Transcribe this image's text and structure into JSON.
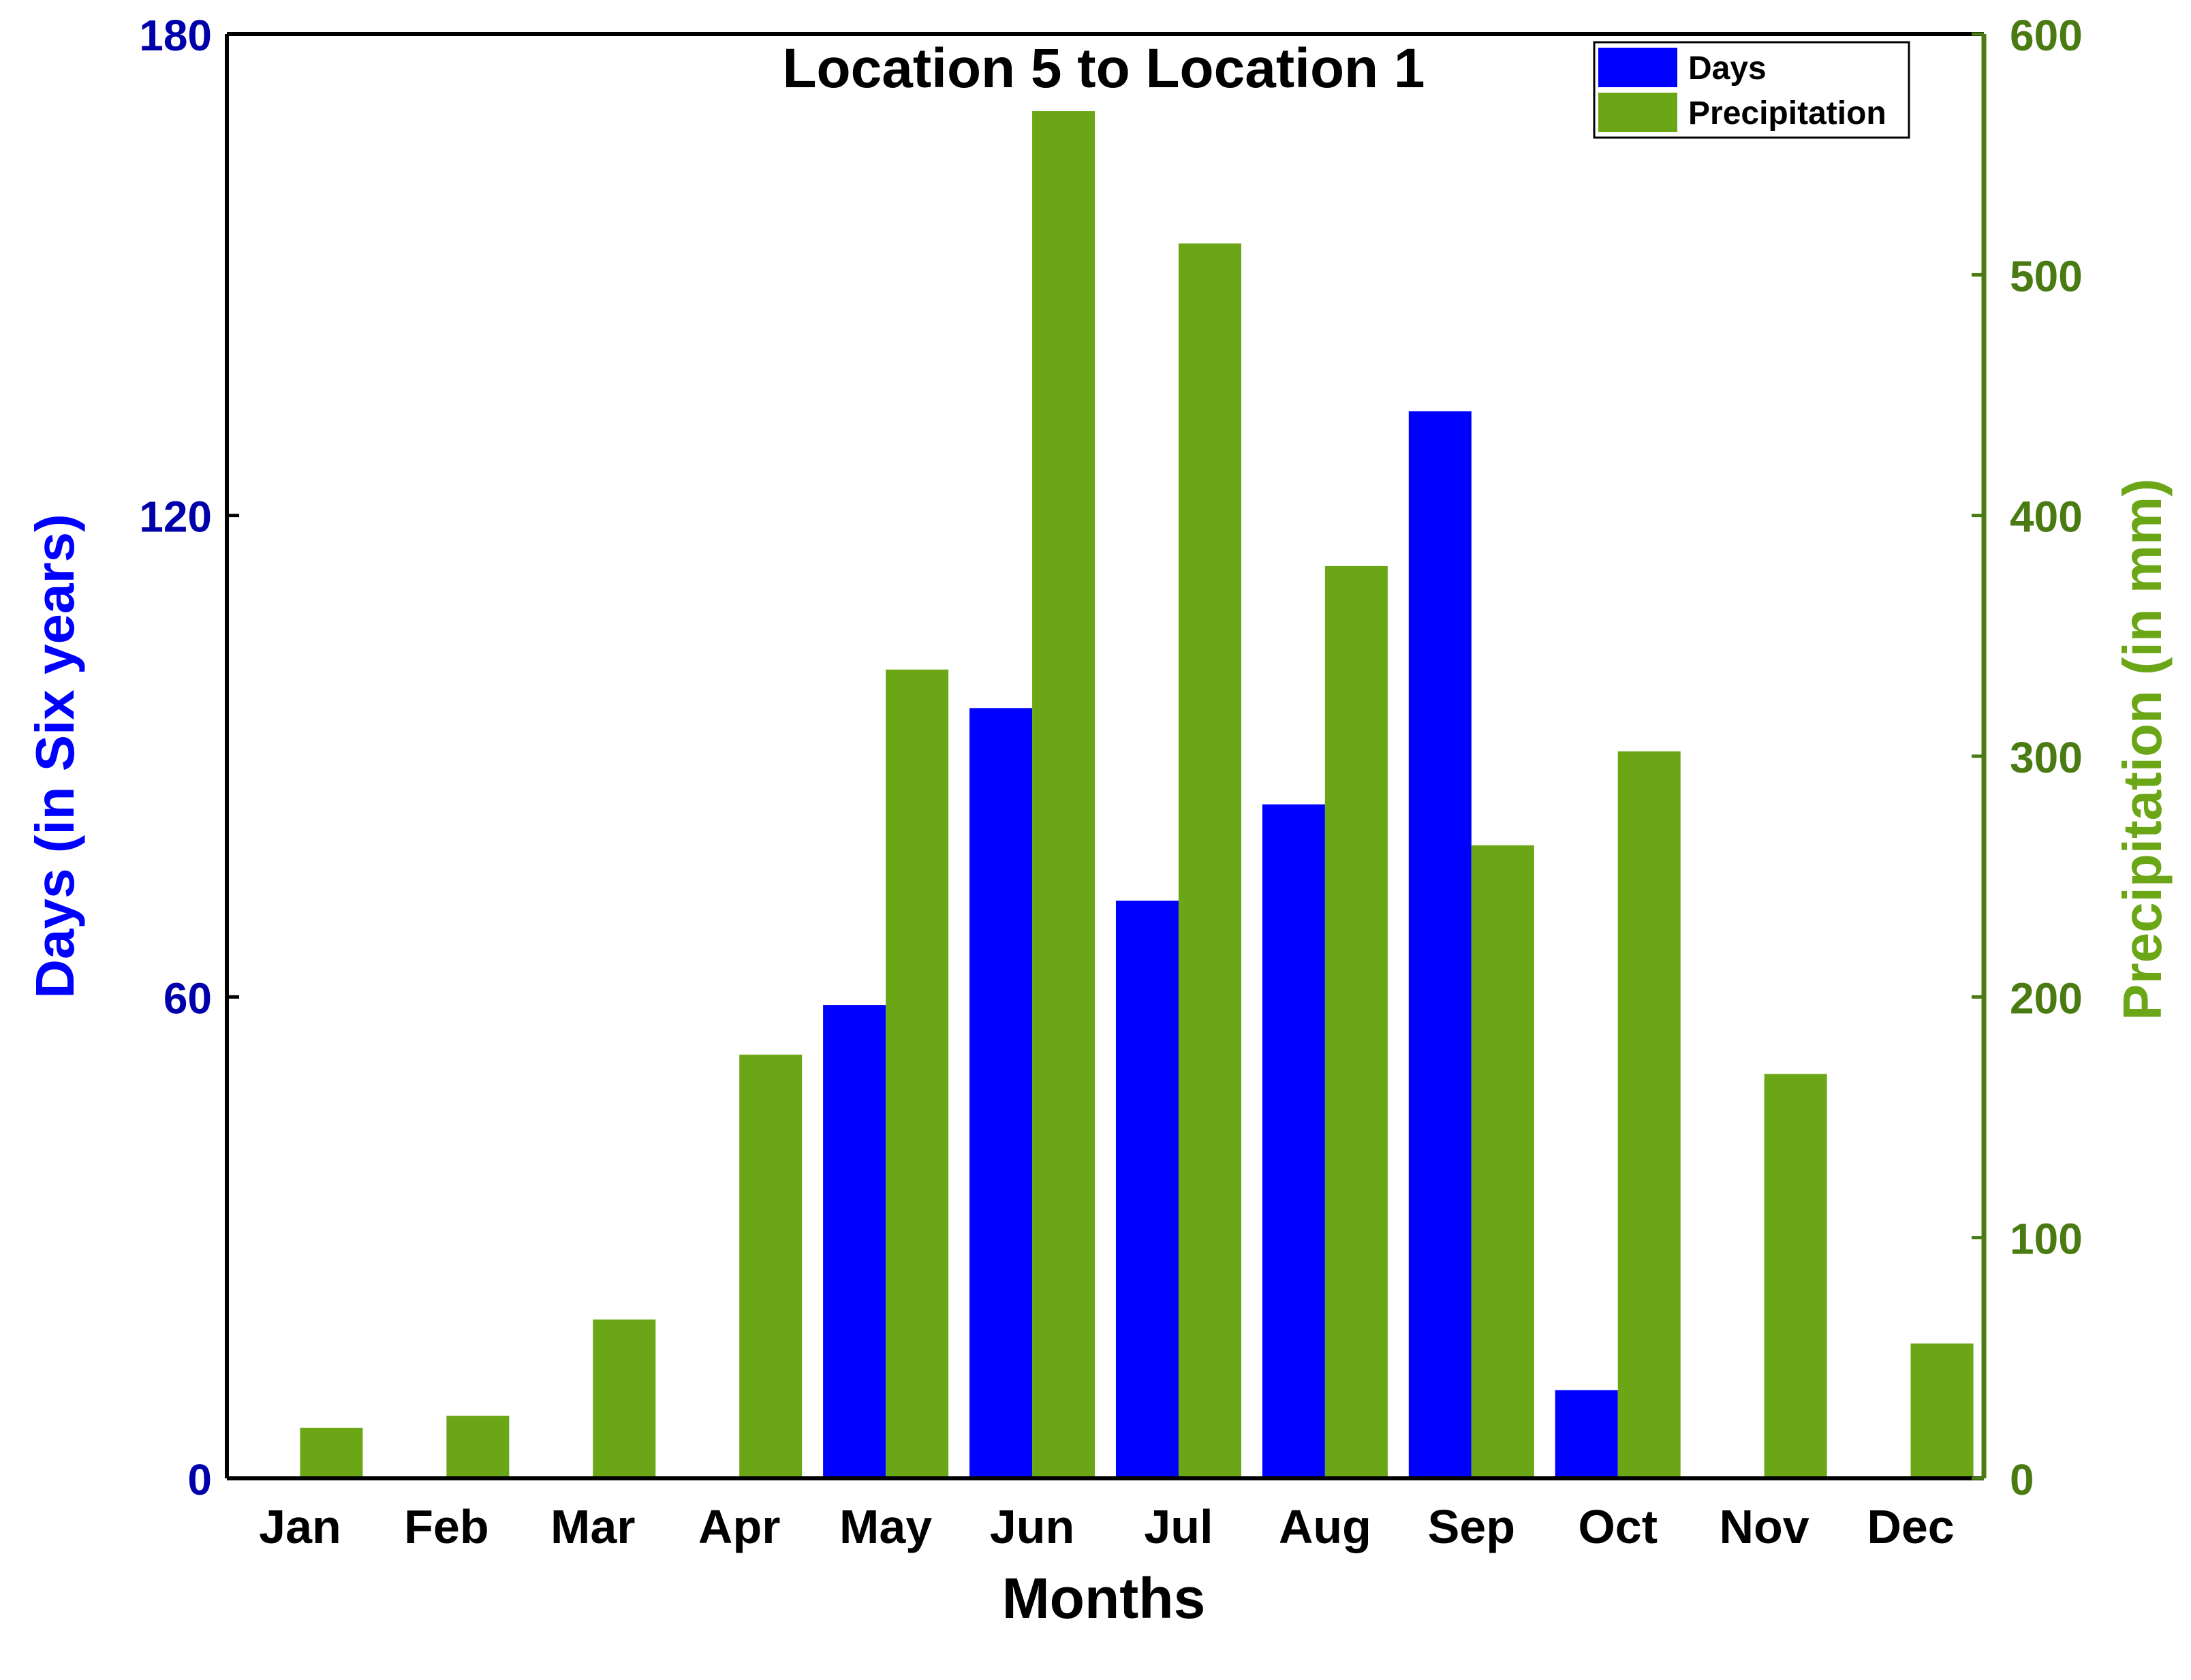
{
  "chart_data": {
    "type": "bar",
    "title": "Location 5 to Location 1",
    "xlabel": "Months",
    "ylabel_left": "Days (in Six years)",
    "ylabel_right": "Precipitation (in mm)",
    "categories": [
      "Jan",
      "Feb",
      "Mar",
      "Apr",
      "May",
      "Jun",
      "Jul",
      "Aug",
      "Sep",
      "Oct",
      "Nov",
      "Dec"
    ],
    "ylim_left": [
      0,
      180
    ],
    "yticks_left": [
      0,
      60,
      120,
      180
    ],
    "ylim_right": [
      0,
      600
    ],
    "yticks_right": [
      0,
      100,
      200,
      300,
      400,
      500,
      600
    ],
    "series": [
      {
        "name": "Days",
        "axis": "left",
        "color": "#0000ff",
        "values": [
          0,
          0,
          0,
          0,
          59,
          96,
          72,
          84,
          133,
          11,
          0,
          0
        ]
      },
      {
        "name": "Precipitation",
        "axis": "right",
        "color": "#6aa616",
        "values": [
          21,
          26,
          66,
          176,
          336,
          568,
          513,
          379,
          263,
          302,
          168,
          56
        ]
      }
    ],
    "legend_position": "top-right",
    "grid": false,
    "colors": {
      "left_axis": "#0000aa",
      "left_label": "#0000ff",
      "right_axis": "#4a7a12",
      "right_label": "#6aa616",
      "text": "#000000"
    }
  }
}
